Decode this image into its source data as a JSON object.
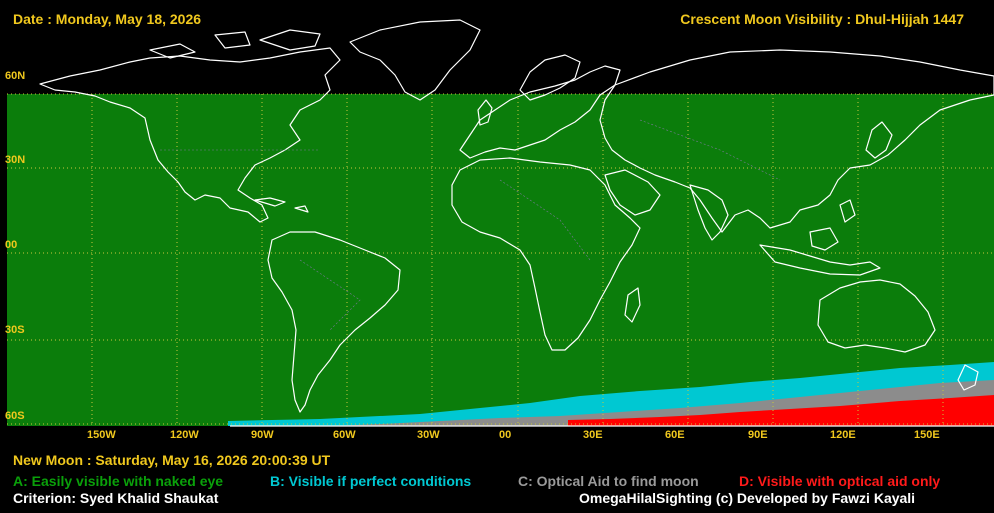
{
  "header": {
    "date": "Date : Monday, May 18, 2026",
    "title": "Crescent Moon Visibility : Dhul-Hijjah  1447"
  },
  "lat_labels": [
    "60N",
    "30N",
    "00",
    "30S",
    "60S"
  ],
  "lon_labels": [
    "150W",
    "120W",
    "90W",
    "60W",
    "30W",
    "00",
    "30E",
    "60E",
    "90E",
    "120E",
    "150E"
  ],
  "new_moon": "New Moon : Saturday, May 16, 2026  20:00:39  UT",
  "legend": {
    "a": "A: Easily visible with naked eye",
    "b": "B: Visible if perfect conditions",
    "c": "C: Optical Aid to find moon",
    "d": "D: Visible with optical aid only"
  },
  "footer": {
    "criterion": "Criterion: Syed Khalid Shaukat",
    "credit": "OmegaHilalSighting  (c)  Developed by Fawzi Kayali"
  },
  "colors": {
    "zone_a": "#0b7d0b",
    "zone_b": "#00c8d2",
    "zone_c": "#8c8c8c",
    "zone_d": "#ff0000",
    "label": "#f0c81e",
    "coast": "#ffffff",
    "grid": "#c8c83c"
  }
}
